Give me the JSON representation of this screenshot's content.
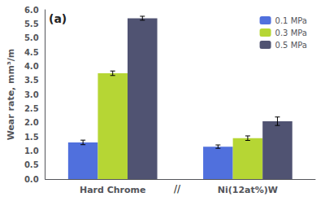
{
  "chart_data": {
    "type": "bar",
    "categories": [
      "Hard Chrome",
      "Ni(12at%)W"
    ],
    "series": [
      {
        "name": "0.1 MPa",
        "values": [
          1.3,
          1.15
        ],
        "errors": [
          0.08,
          0.06
        ]
      },
      {
        "name": "0.3 MPa",
        "values": [
          3.75,
          1.45
        ],
        "errors": [
          0.08,
          0.08
        ]
      },
      {
        "name": "0.5 MPa",
        "values": [
          5.7,
          2.05
        ],
        "errors": [
          0.07,
          0.15
        ]
      }
    ],
    "ylabel": "Wear rate, mm³/m",
    "ylim": [
      0.0,
      6.0
    ],
    "yticks": [
      {
        "value": 0,
        "label": "0.0"
      },
      0.5,
      {
        "value": 1,
        "label": "1.0"
      },
      1.5,
      {
        "value": 2,
        "label": "2.0"
      },
      2.5,
      {
        "value": 3,
        "label": "3.0"
      },
      3.5,
      {
        "value": 4,
        "label": "4.0"
      },
      4.5,
      {
        "value": 5,
        "label": "5.0"
      },
      5.5,
      {
        "value": 6,
        "label": "6.0"
      }
    ],
    "grid": false,
    "legend": "upper right",
    "annotations": [
      "(a)",
      "//"
    ]
  }
}
